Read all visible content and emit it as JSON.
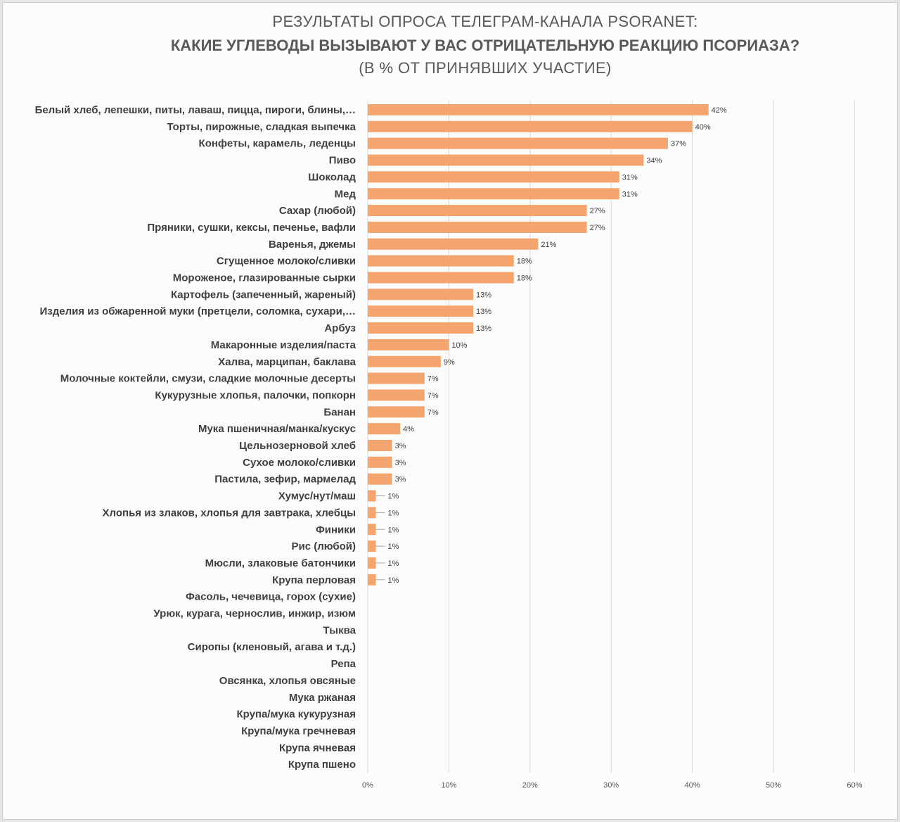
{
  "chart_data": {
    "type": "bar",
    "orientation": "horizontal",
    "title_line1": "РЕЗУЛЬТАТЫ ОПРОСА ТЕЛЕГРАМ-КАНАЛА PSORANET:",
    "title_line2": "КАКИЕ УГЛЕВОДЫ ВЫЗЫВАЮТ У ВАС ОТРИЦАТЕЛЬНУЮ РЕАКЦИЮ ПСОРИАЗА?",
    "title_line3": "(В % ОТ ПРИНЯВШИХ УЧАСТИЕ)",
    "bar_color": "#F4A46E",
    "grid": true,
    "legend": "none",
    "xlim": [
      0,
      60
    ],
    "xticks": [
      0,
      10,
      20,
      30,
      40,
      50,
      60
    ],
    "xticklabels": [
      "0%",
      "10%",
      "20%",
      "30%",
      "40%",
      "50%",
      "60%"
    ],
    "categories": [
      "Белый хлеб, лепешки, питы, лаваш, пицца, пироги, блины,…",
      "Торты, пирожные, сладкая выпечка",
      "Конфеты, карамель, леденцы",
      "Пиво",
      "Шоколад",
      "Мед",
      "Сахар (любой)",
      "Пряники, сушки, кексы, печенье, вафли",
      "Варенья, джемы",
      "Сгущенное молоко/сливки",
      "Мороженое, глазированные сырки",
      "Картофель (запеченный, жареный)",
      "Изделия из обжаренной муки (претцели, соломка, сухари,…",
      "Арбуз",
      "Макаронные изделия/паста",
      "Халва, марципан, баклава",
      "Молочные коктейли, смузи, сладкие молочные десерты",
      "Кукурузные хлопья, палочки, попкорн",
      "Банан",
      "Мука пшеничная/манка/кускус",
      "Цельнозерновой хлеб",
      "Сухое молоко/сливки",
      "Пастила, зефир, мармелад",
      "Хумус/нут/маш",
      "Хлопья из злаков, хлопья для завтрака, хлебцы",
      "Финики",
      "Рис (любой)",
      "Мюсли, злаковые батончики",
      "Крупа перловая",
      "Фасоль, чечевица, горох (сухие)",
      "Урюк, курага, чернослив, инжир, изюм",
      "Тыква",
      "Сиропы (кленовый, агава и т.д.)",
      "Репа",
      "Овсянка, хлопья овсяные",
      "Мука ржаная",
      "Крупа/мука кукурузная",
      "Крупа/мука гречневая",
      "Крупа ячневая",
      "Крупа пшено"
    ],
    "values": [
      42,
      40,
      37,
      34,
      31,
      31,
      27,
      27,
      21,
      18,
      18,
      13,
      13,
      13,
      10,
      9,
      7,
      7,
      7,
      4,
      3,
      3,
      3,
      1,
      1,
      1,
      1,
      1,
      1,
      0,
      0,
      0,
      0,
      0,
      0,
      0,
      0,
      0,
      0,
      0
    ],
    "value_labels": [
      "42%",
      "40%",
      "37%",
      "34%",
      "31%",
      "31%",
      "27%",
      "27%",
      "21%",
      "18%",
      "18%",
      "13%",
      "13%",
      "13%",
      "10%",
      "9%",
      "7%",
      "7%",
      "7%",
      "4%",
      "3%",
      "3%",
      "3%",
      "1%",
      "1%",
      "1%",
      "1%",
      "1%",
      "1%",
      null,
      null,
      null,
      null,
      null,
      null,
      null,
      null,
      null,
      null,
      null
    ]
  }
}
